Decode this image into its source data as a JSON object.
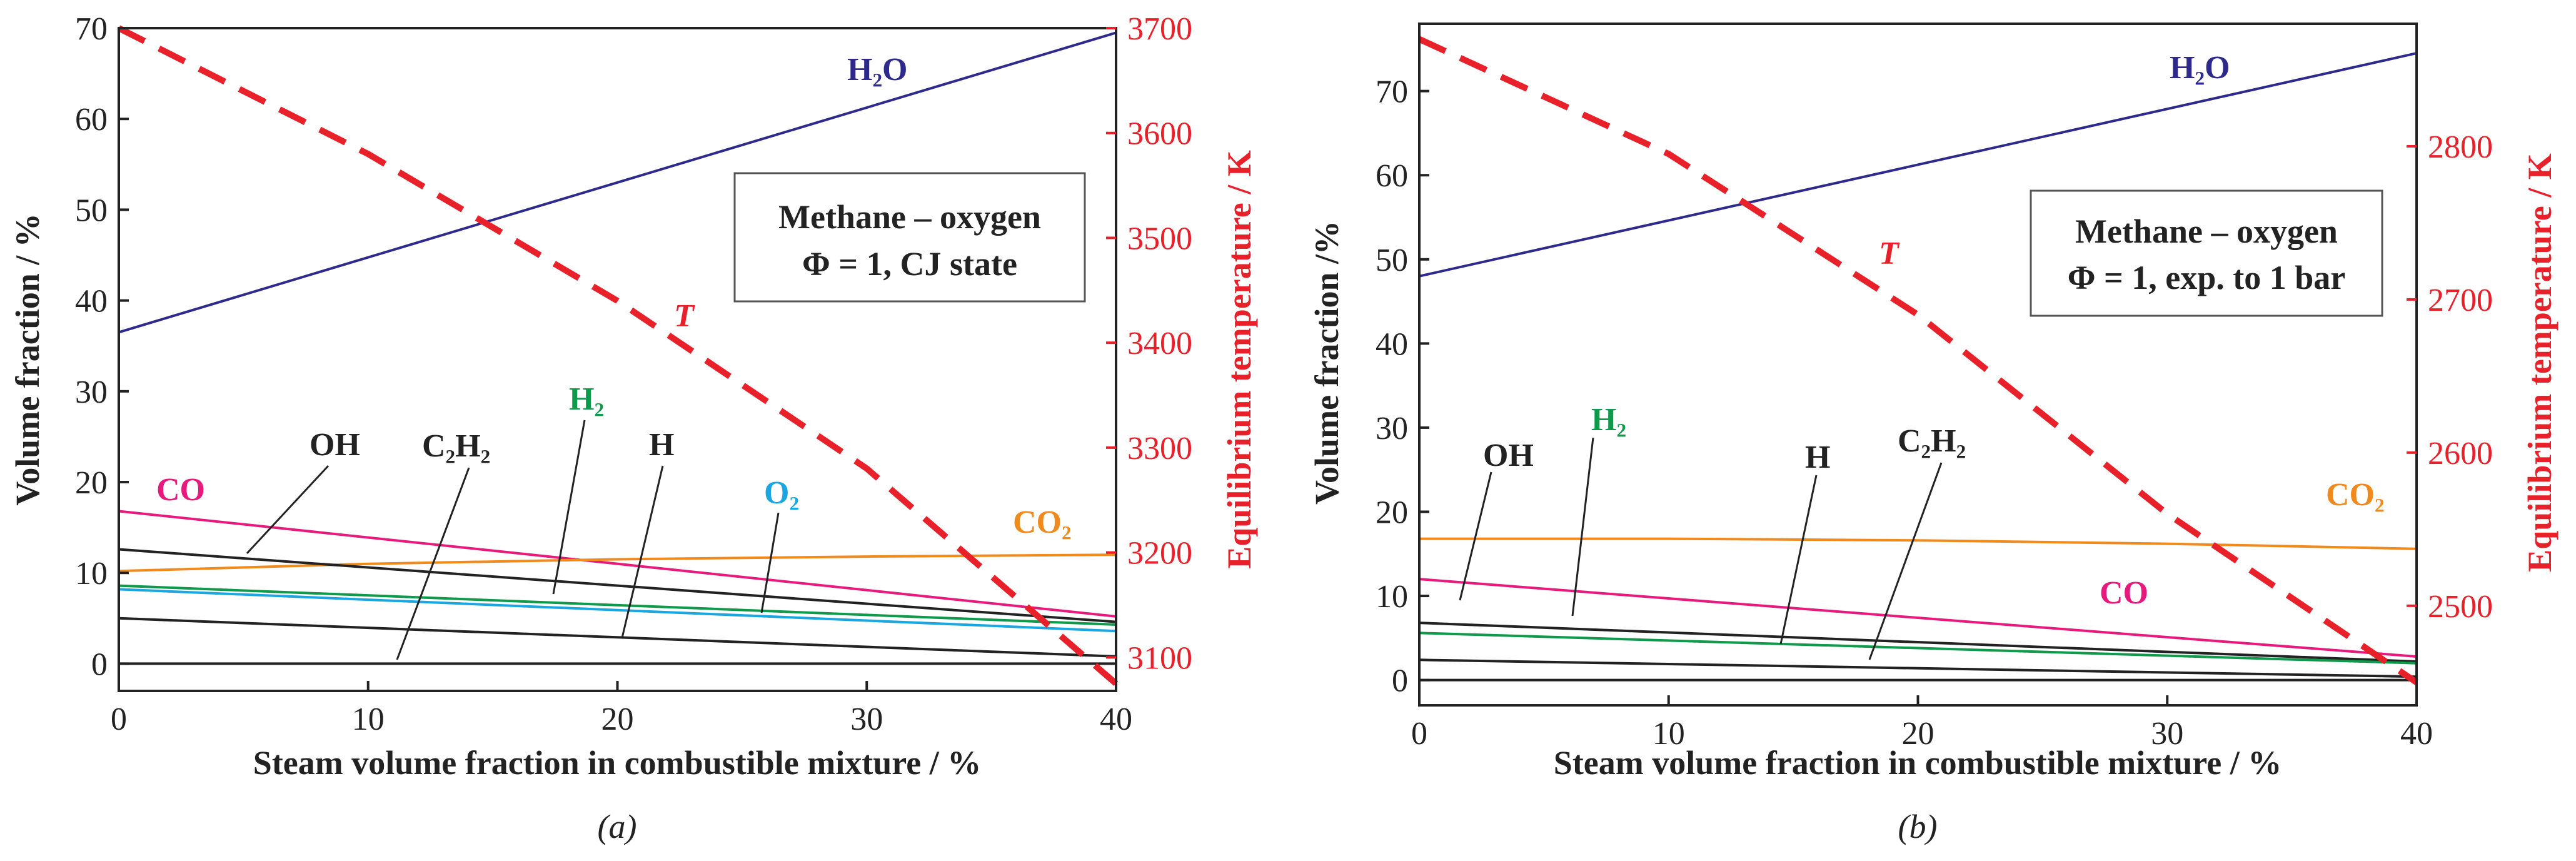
{
  "colors": {
    "H2O": "#2e2a8c",
    "T": "#e8202a",
    "CO": "#e8197c",
    "CO2": "#f08a1c",
    "H2": "#0e9a4a",
    "O2": "#1aa6e0",
    "OH": "#222222",
    "H": "#222222",
    "C2H2": "#222222"
  },
  "chart_data": [
    {
      "type": "line",
      "panel": "(a)",
      "xlabel": "Steam volume fraction in combustible mixture / %",
      "ylabel": "Volume fraction / %",
      "y2label": "Equilibrium temperature / K",
      "xlim": [
        0,
        40
      ],
      "ylim": [
        -3,
        70
      ],
      "y2lim": [
        3068,
        3700
      ],
      "xticks": [
        "0",
        "10",
        "20",
        "30",
        "40"
      ],
      "yticks": [
        "0",
        "10",
        "20",
        "30",
        "40",
        "50",
        "60",
        "70"
      ],
      "y2ticks": [
        "3100",
        "3200",
        "3300",
        "3400",
        "3500",
        "3600",
        "3700"
      ],
      "annotation_lines": [
        "Methane – oxygen",
        "Φ = 1, CJ state"
      ],
      "series": [
        {
          "name": "H2O",
          "axis": "left",
          "x": [
            0,
            40
          ],
          "y": [
            36.5,
            69.5
          ]
        },
        {
          "name": "CO",
          "axis": "left",
          "x": [
            0,
            40
          ],
          "y": [
            16.8,
            5.2
          ]
        },
        {
          "name": "CO2",
          "axis": "left",
          "x": [
            0,
            10,
            20,
            30,
            40
          ],
          "y": [
            10.2,
            11.0,
            11.5,
            11.8,
            12.0
          ]
        },
        {
          "name": "OH",
          "axis": "left",
          "x": [
            0,
            40
          ],
          "y": [
            12.6,
            4.6
          ]
        },
        {
          "name": "H2",
          "axis": "left",
          "x": [
            0,
            40
          ],
          "y": [
            8.6,
            4.3
          ]
        },
        {
          "name": "O2",
          "axis": "left",
          "x": [
            0,
            40
          ],
          "y": [
            8.2,
            3.6
          ]
        },
        {
          "name": "H",
          "axis": "left",
          "x": [
            0,
            40
          ],
          "y": [
            5.0,
            0.8
          ]
        },
        {
          "name": "C2H2",
          "axis": "left",
          "x": [
            0,
            40
          ],
          "y": [
            0.0,
            0.0
          ]
        },
        {
          "name": "T",
          "axis": "right",
          "x": [
            0,
            10,
            20,
            30,
            40
          ],
          "y": [
            3700,
            3580,
            3440,
            3280,
            3075
          ]
        }
      ],
      "labels": [
        {
          "text": "H₂O",
          "series": "H2O"
        },
        {
          "text": "T",
          "series": "T"
        },
        {
          "text": "CO",
          "series": "CO"
        },
        {
          "text": "CO₂",
          "series": "CO2"
        },
        {
          "text": "OH",
          "series": "OH"
        },
        {
          "text": "C₂H₂",
          "series": "C2H2"
        },
        {
          "text": "H₂",
          "series": "H2"
        },
        {
          "text": "H",
          "series": "H"
        },
        {
          "text": "O₂",
          "series": "O2"
        }
      ],
      "caption": "(a)"
    },
    {
      "type": "line",
      "panel": "(b)",
      "xlabel": "Steam volume fraction in combustible mixture / %",
      "ylabel": "Volume fraction /%",
      "y2label": "Equilibrium temperature / K",
      "xlim": [
        0,
        40
      ],
      "ylim": [
        -3,
        78
      ],
      "y2lim": [
        2435,
        2880
      ],
      "xticks": [
        "0",
        "10",
        "20",
        "30",
        "40"
      ],
      "yticks": [
        "0",
        "10",
        "20",
        "30",
        "40",
        "50",
        "60",
        "70"
      ],
      "y2ticks": [
        "2500",
        "2600",
        "2700",
        "2800"
      ],
      "annotation_lines": [
        "Methane – oxygen",
        "Φ = 1, exp. to 1 bar"
      ],
      "series": [
        {
          "name": "H2O",
          "axis": "left",
          "x": [
            0,
            40
          ],
          "y": [
            48.0,
            74.5
          ]
        },
        {
          "name": "CO2",
          "axis": "left",
          "x": [
            0,
            10,
            20,
            30,
            40
          ],
          "y": [
            16.8,
            16.8,
            16.6,
            16.2,
            15.6
          ]
        },
        {
          "name": "CO",
          "axis": "left",
          "x": [
            0,
            40
          ],
          "y": [
            12.0,
            2.8
          ]
        },
        {
          "name": "OH",
          "axis": "left",
          "x": [
            0,
            40
          ],
          "y": [
            6.8,
            2.2
          ]
        },
        {
          "name": "H2",
          "axis": "left",
          "x": [
            0,
            40
          ],
          "y": [
            5.6,
            2.0
          ]
        },
        {
          "name": "H",
          "axis": "left",
          "x": [
            0,
            40
          ],
          "y": [
            2.4,
            0.4
          ]
        },
        {
          "name": "C2H2",
          "axis": "left",
          "x": [
            0,
            40
          ],
          "y": [
            0.0,
            0.0
          ]
        },
        {
          "name": "T",
          "axis": "right",
          "x": [
            0,
            10,
            20,
            30,
            40
          ],
          "y": [
            2870,
            2795,
            2690,
            2560,
            2450
          ]
        }
      ],
      "labels": [
        {
          "text": "H₂O",
          "series": "H2O"
        },
        {
          "text": "T",
          "series": "T"
        },
        {
          "text": "CO₂",
          "series": "CO2"
        },
        {
          "text": "CO",
          "series": "CO"
        },
        {
          "text": "OH",
          "series": "OH"
        },
        {
          "text": "H₂",
          "series": "H2"
        },
        {
          "text": "H",
          "series": "H"
        },
        {
          "text": "C₂H₂",
          "series": "C2H2"
        }
      ],
      "caption": "(b)"
    }
  ]
}
